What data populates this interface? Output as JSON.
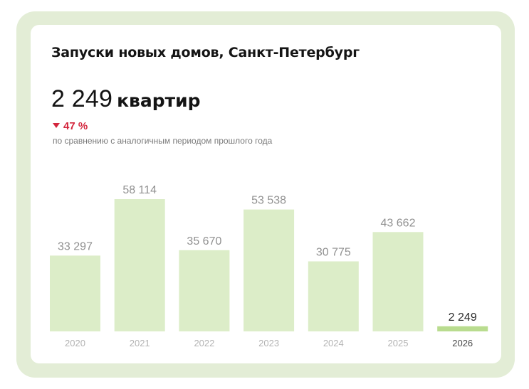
{
  "card": {
    "title": "Запуски новых домов, Санкт-Петербург",
    "total_value": "2 249",
    "total_unit": "квартир",
    "change": "47 %",
    "change_direction": "down",
    "comparison_note": "по сравнению с аналогичным периодом прошлого года"
  },
  "colors": {
    "bar": "#dcedc8",
    "bar_current": "#b9dc8f",
    "frame": "#e3edd6",
    "negative": "#d3263d"
  },
  "chart_data": {
    "type": "bar",
    "categories": [
      "2020",
      "2021",
      "2022",
      "2023",
      "2024",
      "2025",
      "2026"
    ],
    "values": [
      33297,
      58114,
      35670,
      53538,
      30775,
      43662,
      2249
    ],
    "value_labels": [
      "33 297",
      "58 114",
      "35 670",
      "53 538",
      "30 775",
      "43 662",
      "2 249"
    ],
    "highlight_index": 6,
    "title": "",
    "xlabel": "",
    "ylabel": "",
    "ylim": [
      0,
      58114
    ],
    "grid": false,
    "legend": "none"
  }
}
